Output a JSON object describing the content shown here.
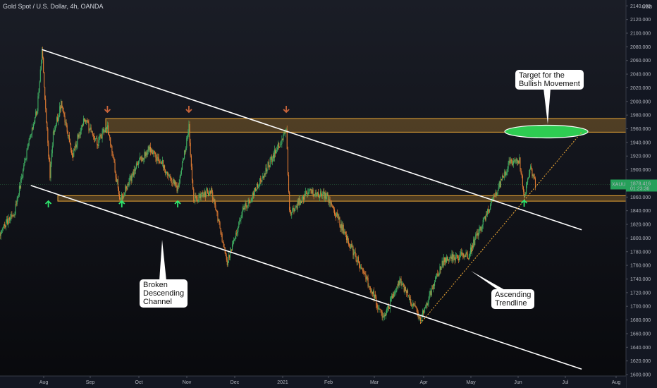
{
  "chart_title": "Gold Spot / U.S. Dollar, 4h, OANDA",
  "currency": "USD",
  "price_label": {
    "ticker": "XAUUSD",
    "price": "1878.416",
    "countdown": "01:23:36"
  },
  "annotations": {
    "target": "Target for the\nBullish Movement",
    "channel": "Broken\nDescending\nChannel",
    "trendline": "Ascending\nTrendline"
  },
  "colors": {
    "up": "#3fae62",
    "down": "#e07b32",
    "zone": "#e8a435",
    "arrow_up": "#2ee86e",
    "arrow_down": "#c9643a",
    "target_fill": "#2ecc52"
  },
  "chart_data": {
    "type": "candlestick",
    "title": "Gold Spot / U.S. Dollar, 4h, OANDA",
    "x_labels": [
      "Aug",
      "Sep",
      "Oct",
      "Nov",
      "Dec",
      "2021",
      "Feb",
      "Mar",
      "Apr",
      "May",
      "Jun",
      "Jul",
      "Aug"
    ],
    "y_ticks": [
      1600,
      1620,
      1640,
      1660,
      1680,
      1700,
      1720,
      1740,
      1760,
      1780,
      1800,
      1820,
      1840,
      1860,
      1880,
      1900,
      1920,
      1940,
      1960,
      1980,
      2000,
      2020,
      2040,
      2060,
      2080,
      2100,
      2120,
      2140
    ],
    "ylim": [
      1600,
      2145
    ],
    "price_path": [
      [
        "2020-07-01",
        1780
      ],
      [
        "2020-07-08",
        1800
      ],
      [
        "2020-07-20",
        1840
      ],
      [
        "2020-07-27",
        1920
      ],
      [
        "2020-08-03",
        1990
      ],
      [
        "2020-08-06",
        2075
      ],
      [
        "2020-08-11",
        1890
      ],
      [
        "2020-08-13",
        1955
      ],
      [
        "2020-08-18",
        1995
      ],
      [
        "2020-08-25",
        1920
      ],
      [
        "2020-09-01",
        1975
      ],
      [
        "2020-09-10",
        1940
      ],
      [
        "2020-09-16",
        1965
      ],
      [
        "2020-09-24",
        1855
      ],
      [
        "2020-10-05",
        1910
      ],
      [
        "2020-10-12",
        1930
      ],
      [
        "2020-10-20",
        1910
      ],
      [
        "2020-10-30",
        1870
      ],
      [
        "2020-11-06",
        1962
      ],
      [
        "2020-11-09",
        1855
      ],
      [
        "2020-11-20",
        1870
      ],
      [
        "2020-11-30",
        1765
      ],
      [
        "2020-12-10",
        1840
      ],
      [
        "2020-12-20",
        1880
      ],
      [
        "2021-01-06",
        1958
      ],
      [
        "2021-01-08",
        1835
      ],
      [
        "2021-01-20",
        1870
      ],
      [
        "2021-02-01",
        1860
      ],
      [
        "2021-02-15",
        1790
      ],
      [
        "2021-03-01",
        1720
      ],
      [
        "2021-03-08",
        1680
      ],
      [
        "2021-03-18",
        1740
      ],
      [
        "2021-03-31",
        1680
      ],
      [
        "2021-04-15",
        1770
      ],
      [
        "2021-04-30",
        1775
      ],
      [
        "2021-05-18",
        1870
      ],
      [
        "2021-05-26",
        1910
      ],
      [
        "2021-06-01",
        1915
      ],
      [
        "2021-06-04",
        1860
      ],
      [
        "2021-06-08",
        1900
      ],
      [
        "2021-06-11",
        1878
      ]
    ],
    "resistance_zone": [
      1955,
      1975
    ],
    "support_zone": [
      1854,
      1862
    ],
    "target_price": 1960,
    "channel_upper": [
      [
        "2020-08-06",
        2076
      ],
      [
        "2021-07-10",
        1812
      ]
    ],
    "channel_lower": [
      [
        "2020-07-30",
        1877
      ],
      [
        "2021-07-10",
        1608
      ]
    ],
    "ascending_trendline": [
      [
        "2021-03-31",
        1675
      ],
      [
        "2021-07-10",
        1955
      ]
    ],
    "resistance_marks": [
      "2020-09-16",
      "2020-11-06",
      "2021-01-06"
    ],
    "support_marks": [
      "2020-08-10",
      "2020-09-25",
      "2020-10-30"
    ],
    "breakout_mark": "2021-06-04",
    "last_price": 1878.416
  }
}
